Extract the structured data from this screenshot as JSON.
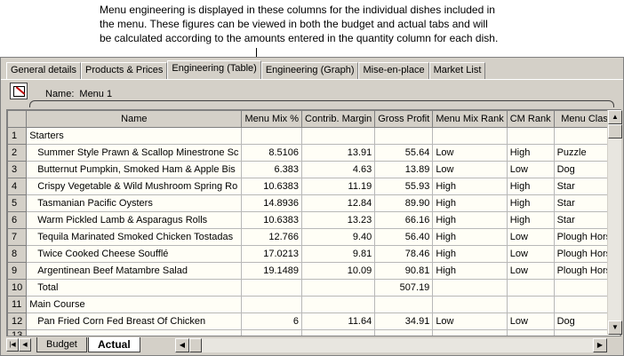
{
  "annotation": {
    "lines": [
      "Menu engineering is displayed in these columns for the individual dishes included in",
      "the menu.  These figures can be viewed in both the budget and actual tabs and will",
      "be calculated according to the amounts entered in the quantity column for each dish."
    ]
  },
  "tabs": [
    {
      "label": "General details",
      "active": false
    },
    {
      "label": "Products & Prices",
      "active": false
    },
    {
      "label": "Engineering (Table)",
      "active": true
    },
    {
      "label": "Engineering (Graph)",
      "active": false
    },
    {
      "label": "Mise-en-place",
      "active": false
    },
    {
      "label": "Market List",
      "active": false
    }
  ],
  "menu": {
    "name_label": "Name:",
    "name_value": "Menu 1"
  },
  "columns": [
    "Name",
    "Menu Mix %",
    "Contrib. Margin",
    "Gross Profit",
    "Menu Mix Rank",
    "CM Rank",
    "Menu Class"
  ],
  "rows": [
    {
      "num": "1",
      "name": "Starters",
      "section": true,
      "mix": "",
      "cm": "",
      "gp": "",
      "mix_rank": "",
      "cm_rank": "",
      "class": ""
    },
    {
      "num": "2",
      "name": "Summer Style Prawn & Scallop Minestrone Sc",
      "mix": "8.5106",
      "cm": "13.91",
      "gp": "55.64",
      "mix_rank": "Low",
      "cm_rank": "High",
      "class": "Puzzle"
    },
    {
      "num": "3",
      "name": "Butternut Pumpkin, Smoked Ham & Apple Bis",
      "mix": "6.383",
      "cm": "4.63",
      "gp": "13.89",
      "mix_rank": "Low",
      "cm_rank": "Low",
      "class": "Dog"
    },
    {
      "num": "4",
      "name": "Crispy Vegetable & Wild Mushroom Spring Ro",
      "mix": "10.6383",
      "cm": "11.19",
      "gp": "55.93",
      "mix_rank": "High",
      "cm_rank": "High",
      "class": "Star"
    },
    {
      "num": "5",
      "name": "Tasmanian Pacific Oysters",
      "mix": "14.8936",
      "cm": "12.84",
      "gp": "89.90",
      "mix_rank": "High",
      "cm_rank": "High",
      "class": "Star"
    },
    {
      "num": "6",
      "name": "Warm Pickled Lamb & Asparagus Rolls",
      "mix": "10.6383",
      "cm": "13.23",
      "gp": "66.16",
      "mix_rank": "High",
      "cm_rank": "High",
      "class": "Star"
    },
    {
      "num": "7",
      "name": "Tequila Marinated Smoked Chicken Tostadas",
      "mix": "12.766",
      "cm": "9.40",
      "gp": "56.40",
      "mix_rank": "High",
      "cm_rank": "Low",
      "class": "Plough Horse"
    },
    {
      "num": "8",
      "name": "Twice Cooked Cheese Soufflé",
      "mix": "17.0213",
      "cm": "9.81",
      "gp": "78.46",
      "mix_rank": "High",
      "cm_rank": "Low",
      "class": "Plough Horse"
    },
    {
      "num": "9",
      "name": "Argentinean Beef Matambre Salad",
      "mix": "19.1489",
      "cm": "10.09",
      "gp": "90.81",
      "mix_rank": "High",
      "cm_rank": "Low",
      "class": "Plough Horse"
    },
    {
      "num": "10",
      "name": "Total",
      "mix": "",
      "cm": "",
      "gp": "507.19",
      "mix_rank": "",
      "cm_rank": "",
      "class": ""
    },
    {
      "num": "11",
      "name": "Main Course",
      "section": true,
      "mix": "",
      "cm": "",
      "gp": "",
      "mix_rank": "",
      "cm_rank": "",
      "class": ""
    },
    {
      "num": "12",
      "name": "Pan Fried Corn Fed Breast Of Chicken",
      "mix": "6",
      "cm": "11.64",
      "gp": "34.91",
      "mix_rank": "Low",
      "cm_rank": "Low",
      "class": "Dog"
    },
    {
      "num": "13",
      "name": "",
      "mix": "",
      "cm": "",
      "gp": "",
      "mix_rank": "",
      "cm_rank": "",
      "class": ""
    }
  ],
  "sheets": [
    {
      "label": "Budget",
      "active": false
    },
    {
      "label": "Actual",
      "active": true
    }
  ],
  "icons": {
    "toolbar": "edit-report-icon",
    "nav_first": "first-sheet-icon",
    "nav_prev": "prev-sheet-icon",
    "nav_next": "next-sheet-icon",
    "nav_last": "last-sheet-icon",
    "scroll_up": "scroll-up-icon",
    "scroll_down": "scroll-down-icon",
    "scroll_left": "scroll-left-icon",
    "scroll_right": "scroll-right-icon"
  },
  "colors": {
    "window_bg": "#d4d0c8",
    "cell_bg": "#fffef6",
    "header_bg": "#d4d0c8"
  }
}
